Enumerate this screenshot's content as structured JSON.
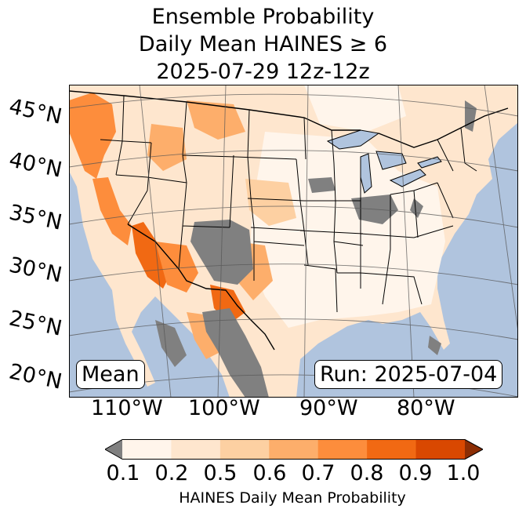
{
  "title": {
    "line1": "Ensemble Probability",
    "line2": "Daily Mean HAINES ≥ 6",
    "line3": "2025-07-29 12z-12z"
  },
  "map": {
    "lat_labels": [
      "45°N",
      "40°N",
      "35°N",
      "30°N",
      "25°N",
      "20°N"
    ],
    "lon_labels": [
      "110°W",
      "100°W",
      "90°W",
      "80°W"
    ],
    "stat_label": "Mean",
    "run_label": "Run: 2025-07-04",
    "colors": {
      "ocean": "#b0c4de",
      "missing": "#808080",
      "border": "#000000"
    }
  },
  "colorbar": {
    "ticks": [
      "0.1",
      "0.2",
      "0.5",
      "0.6",
      "0.7",
      "0.8",
      "0.9",
      "1.0"
    ],
    "colors": [
      "#fff5eb",
      "#fee6ce",
      "#fdd0a2",
      "#fdae6b",
      "#fd8d3c",
      "#f16913",
      "#d94801"
    ],
    "under_color": "#808080",
    "over_color": "#8c2d04",
    "label": "HAINES Daily Mean Probability"
  }
}
